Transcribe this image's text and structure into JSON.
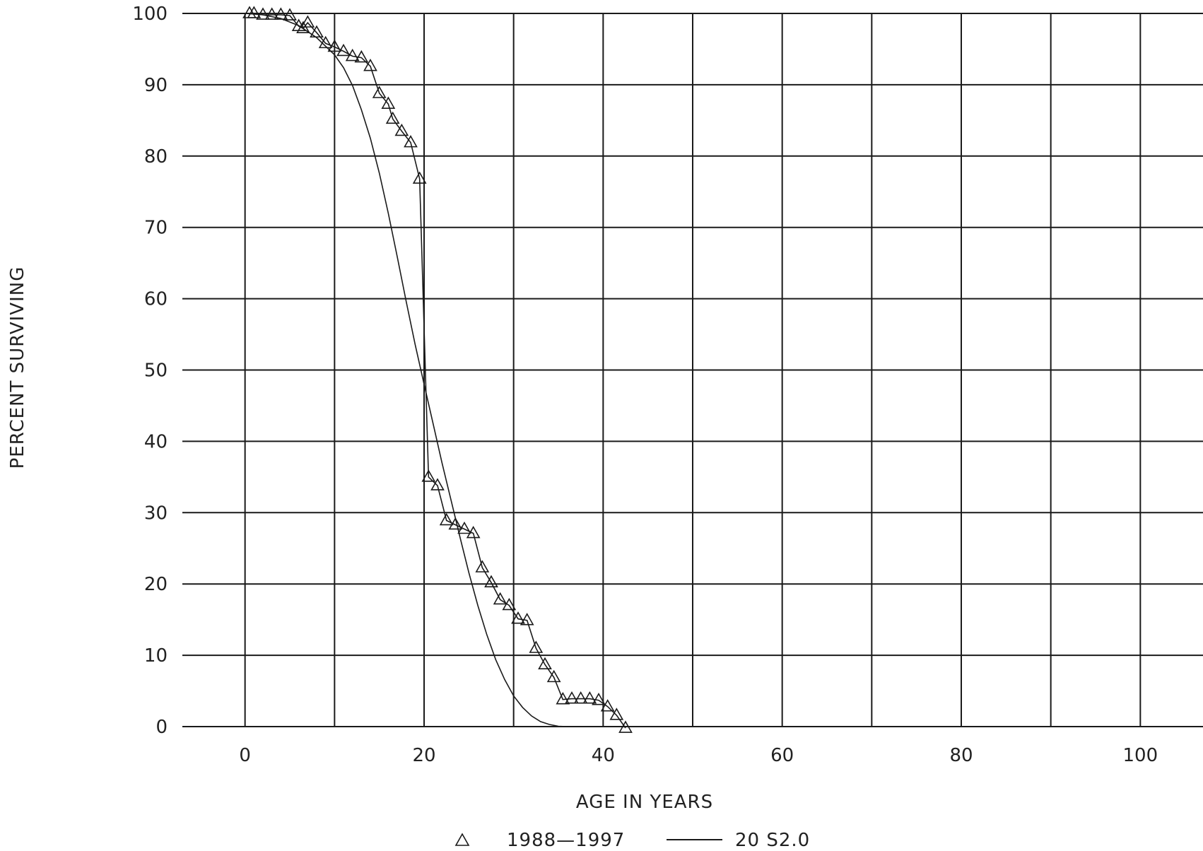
{
  "chart_data": {
    "type": "scatter",
    "xlabel": "AGE IN YEARS",
    "ylabel": "PERCENT SURVIVING",
    "xlim": [
      -7,
      107
    ],
    "ylim": [
      0,
      100
    ],
    "x_ticks": [
      0,
      20,
      40,
      60,
      80,
      100
    ],
    "y_ticks": [
      0,
      10,
      20,
      30,
      40,
      50,
      60,
      70,
      80,
      90,
      100
    ],
    "x_gridlines": [
      0,
      10,
      20,
      30,
      40,
      50,
      60,
      70,
      80,
      90,
      100
    ],
    "y_gridlines": [
      0,
      10,
      20,
      30,
      40,
      50,
      60,
      70,
      80,
      90,
      100
    ],
    "grid": true,
    "legend_position": "bottom",
    "series": [
      {
        "name": "1988—1997",
        "marker": "triangle",
        "style": "markers-with-line",
        "x": [
          0.5,
          1.0,
          2.0,
          3.0,
          4.0,
          5.0,
          6.0,
          6.5,
          7.0,
          8.0,
          9.0,
          10.0,
          11.0,
          12.0,
          13.0,
          14.0,
          15.0,
          16.0,
          16.5,
          17.5,
          18.5,
          19.5,
          20.5,
          21.5,
          22.5,
          23.5,
          24.5,
          25.5,
          26.5,
          27.5,
          28.5,
          29.5,
          30.5,
          31.5,
          32.5,
          33.5,
          34.5,
          35.5,
          36.5,
          37.5,
          38.5,
          39.5,
          40.5,
          41.5,
          42.5
        ],
        "y": [
          100.0,
          100.0,
          99.8,
          99.8,
          99.8,
          99.7,
          98.2,
          97.9,
          98.7,
          97.3,
          95.8,
          95.3,
          94.7,
          94.0,
          93.8,
          92.6,
          88.8,
          87.3,
          85.2,
          83.5,
          81.9,
          76.8,
          35.0,
          33.8,
          28.9,
          28.3,
          27.7,
          27.1,
          22.3,
          20.2,
          17.8,
          17.0,
          15.1,
          14.9,
          11.0,
          8.7,
          6.9,
          3.8,
          3.9,
          3.9,
          3.9,
          3.7,
          2.8,
          1.6,
          -0.2
        ]
      },
      {
        "name": "20 S2.0",
        "marker": "none",
        "style": "line",
        "x": [
          0,
          2,
          4,
          6,
          8,
          10,
          11,
          12,
          13,
          14,
          15,
          16,
          17,
          18,
          19,
          20,
          21,
          22,
          23,
          24,
          25,
          26,
          27,
          28,
          29,
          30,
          31,
          32,
          33,
          34,
          35,
          36
        ],
        "y": [
          100.0,
          99.8,
          99.3,
          98.3,
          96.6,
          94.2,
          92.4,
          89.9,
          86.5,
          82.5,
          77.6,
          72.0,
          65.9,
          59.6,
          53.6,
          48.0,
          42.5,
          37.0,
          31.8,
          26.6,
          21.6,
          17.0,
          12.9,
          9.4,
          6.6,
          4.3,
          2.7,
          1.5,
          0.7,
          0.3,
          0.05,
          0.0
        ]
      }
    ]
  },
  "legend": {
    "items": [
      {
        "symbol": "triangle-icon",
        "label": "1988—1997"
      },
      {
        "symbol": "line-icon",
        "label": "20 S2.0"
      }
    ]
  }
}
